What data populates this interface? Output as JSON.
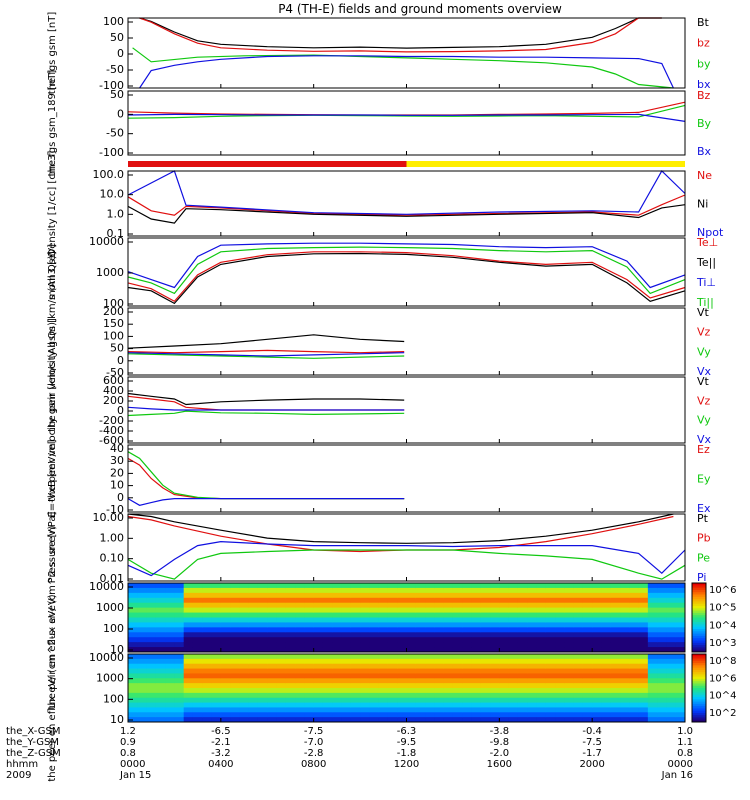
{
  "title": "P4 (TH-E) fields and ground moments overview",
  "colors": {
    "black": "#000000",
    "red": "#e01010",
    "green": "#10c810",
    "blue": "#1010e0",
    "yellow": "#ffee00"
  },
  "x_tick_labels_hhmm": [
    "0000",
    "0400",
    "0800",
    "1200",
    "1600",
    "2000",
    "0000"
  ],
  "x_date_labels": [
    "Jan 15",
    "",
    "",
    "",
    "",
    "",
    "Jan 16"
  ],
  "orbit_rows": [
    {
      "label": "the_X-GSM",
      "values": [
        "1.2",
        "-6.5",
        "-7.5",
        "-6.3",
        "-3.8",
        "-0.4",
        "1.0"
      ]
    },
    {
      "label": "the_Y-GSM",
      "values": [
        "0.9",
        "-2.1",
        "-7.0",
        "-9.5",
        "-9.8",
        "-7.5",
        "1.1"
      ]
    },
    {
      "label": "the_Z-GSM",
      "values": [
        "0.8",
        "-3.2",
        "-2.8",
        "-1.8",
        "-2.0",
        "-1.7",
        "0.8"
      ]
    },
    {
      "label": "hhmm",
      "values": [
        "0000",
        "0400",
        "0800",
        "1200",
        "1600",
        "2000",
        "0000"
      ]
    },
    {
      "label": "2009",
      "values": [
        "Jan 15",
        "",
        "",
        "",
        "",
        "",
        "Jan 16"
      ]
    }
  ],
  "chart_data": [
    {
      "type": "line",
      "ylabel": "the fgs gsm [nT]",
      "ylim": [
        -100,
        100
      ],
      "yticks": [
        "100",
        "50",
        "0",
        "-50",
        "-100"
      ],
      "series": [
        {
          "name": "Bt",
          "color": "#000000",
          "x": [
            0.5,
            1,
            2,
            3,
            4,
            6,
            8,
            10,
            12,
            14,
            16,
            18,
            20,
            21,
            22,
            23
          ],
          "values": [
            100,
            90,
            60,
            35,
            25,
            18,
            15,
            17,
            14,
            16,
            18,
            25,
            45,
            70,
            100,
            100
          ]
        },
        {
          "name": "bz",
          "color": "#e01010",
          "x": [
            0.5,
            1,
            2,
            3,
            4,
            6,
            8,
            10,
            12,
            14,
            16,
            18,
            20,
            21,
            22,
            23
          ],
          "values": [
            100,
            88,
            55,
            28,
            15,
            8,
            5,
            6,
            3,
            4,
            6,
            10,
            30,
            55,
            100,
            100
          ]
        },
        {
          "name": "by",
          "color": "#10c810",
          "x": [
            0.2,
            1,
            3,
            5,
            8,
            10,
            12,
            14,
            16,
            18,
            20,
            21,
            22,
            23.5
          ],
          "values": [
            15,
            -25,
            -12,
            -8,
            -6,
            -10,
            -14,
            -18,
            -22,
            -28,
            -40,
            -60,
            -90,
            -100
          ]
        },
        {
          "name": "bx",
          "color": "#1010e0",
          "x": [
            0.5,
            1,
            2,
            3,
            4,
            6,
            8,
            10,
            12,
            14,
            16,
            18,
            20,
            22,
            23,
            23.5
          ],
          "values": [
            -100,
            -50,
            -35,
            -25,
            -18,
            -10,
            -8,
            -8,
            -10,
            -10,
            -12,
            -12,
            -14,
            -16,
            -30,
            -100
          ]
        }
      ]
    },
    {
      "type": "line",
      "ylabel": "the fgs gsm_189 [nT]",
      "ylim": [
        -125,
        75
      ],
      "yticks": [
        "50",
        "0",
        "-50",
        "-100"
      ],
      "series": [
        {
          "name": "Bz",
          "color": "#e01010",
          "x": [
            0,
            2,
            4,
            6,
            8,
            10,
            12,
            14,
            16,
            18,
            20,
            22,
            24
          ],
          "values": [
            10,
            6,
            3,
            2,
            1,
            0,
            0,
            0,
            2,
            3,
            5,
            8,
            40
          ]
        },
        {
          "name": "By",
          "color": "#10c810",
          "x": [
            0,
            2,
            4,
            6,
            8,
            10,
            12,
            14,
            16,
            18,
            20,
            22,
            24
          ],
          "values": [
            -10,
            -8,
            -4,
            -2,
            -1,
            -2,
            -3,
            -4,
            -3,
            -2,
            -4,
            -6,
            30
          ]
        },
        {
          "name": "Bx",
          "color": "#1010e0",
          "x": [
            0,
            2,
            4,
            6,
            8,
            10,
            12,
            14,
            16,
            18,
            20,
            22,
            24
          ],
          "values": [
            0,
            2,
            1,
            0,
            0,
            0,
            -1,
            -1,
            0,
            0,
            1,
            2,
            -20
          ]
        }
      ]
    },
    {
      "type": "line",
      "ylabel": "Density [1/cc] [cm-3]",
      "yscale": "log",
      "ylim": [
        0.03,
        100
      ],
      "yticks": [
        "100.0",
        "10.0",
        "1.0",
        "0.1"
      ],
      "series": [
        {
          "name": "Ne",
          "color": "#e01010",
          "x": [
            0,
            1,
            2,
            2.5,
            4,
            8,
            12,
            16,
            20,
            22,
            23,
            24
          ],
          "values": [
            4,
            0.7,
            0.4,
            1.2,
            1.0,
            0.5,
            0.4,
            0.5,
            0.6,
            0.4,
            1.5,
            5
          ]
        },
        {
          "name": "Ni",
          "color": "#000000",
          "x": [
            0,
            1,
            2,
            2.5,
            4,
            8,
            12,
            16,
            20,
            22,
            23,
            24
          ],
          "values": [
            1.2,
            0.25,
            0.15,
            0.9,
            0.8,
            0.45,
            0.35,
            0.45,
            0.55,
            0.3,
            1.0,
            1.5
          ]
        },
        {
          "name": "Npot",
          "color": "#1010e0",
          "x": [
            0,
            2,
            2.5,
            4,
            8,
            12,
            16,
            20,
            22,
            23,
            24
          ],
          "values": [
            5,
            100,
            1.4,
            1.1,
            0.55,
            0.45,
            0.6,
            0.7,
            0.6,
            100,
            6
          ]
        }
      ]
    },
    {
      "type": "line",
      "ylabel": "mom3 [eV]",
      "yscale": "log",
      "ylim": [
        40,
        15000
      ],
      "yticks": [
        "10000",
        "1000",
        "100"
      ],
      "series": [
        {
          "name": "Te⊥",
          "color": "#e01010",
          "x": [
            0,
            1,
            2,
            3,
            4,
            6,
            8,
            10,
            12,
            14,
            16,
            18,
            20,
            21.5,
            22.5,
            24
          ],
          "values": [
            300,
            180,
            60,
            600,
            1800,
            3500,
            4500,
            4500,
            4200,
            3200,
            2000,
            1500,
            1800,
            400,
            80,
            200
          ]
        },
        {
          "name": "Te||",
          "color": "#000000",
          "x": [
            0,
            1,
            2,
            3,
            4,
            6,
            8,
            10,
            12,
            14,
            16,
            18,
            20,
            21.5,
            22.5,
            24
          ],
          "values": [
            200,
            150,
            50,
            500,
            1500,
            3000,
            3800,
            3900,
            3600,
            2800,
            1800,
            1300,
            1500,
            300,
            60,
            150
          ]
        },
        {
          "name": "Ti⊥",
          "color": "#1010e0",
          "x": [
            0,
            1,
            2,
            3,
            4,
            6,
            8,
            10,
            12,
            14,
            16,
            18,
            20,
            21.5,
            22.5,
            24
          ],
          "values": [
            800,
            400,
            200,
            3000,
            8000,
            9000,
            9500,
            9500,
            9000,
            8500,
            7000,
            6500,
            7000,
            2000,
            200,
            600
          ]
        },
        {
          "name": "Ti||",
          "color": "#10c810",
          "x": [
            0,
            1,
            2,
            3,
            4,
            6,
            8,
            10,
            12,
            14,
            16,
            18,
            20,
            21.5,
            22.5,
            24
          ],
          "values": [
            500,
            300,
            120,
            1500,
            4500,
            6000,
            6500,
            6800,
            6500,
            6000,
            5000,
            4500,
            5000,
            1200,
            120,
            400
          ]
        }
      ]
    },
    {
      "type": "line",
      "ylabel": "the peir velocity gsm [km/s (All Qs)]",
      "ylim": [
        -100,
        200
      ],
      "yticks": [
        "200",
        "150",
        "100",
        "50",
        "0",
        "-50"
      ],
      "series": [
        {
          "name": "Vt",
          "color": "#000000",
          "x": [
            0,
            2,
            4,
            6,
            8,
            10,
            11.9
          ],
          "values": [
            20,
            30,
            40,
            60,
            80,
            60,
            50
          ]
        },
        {
          "name": "Vz",
          "color": "#e01010",
          "x": [
            0,
            2,
            4,
            6,
            8,
            10,
            11.9
          ],
          "values": [
            5,
            0,
            5,
            10,
            5,
            0,
            5
          ]
        },
        {
          "name": "Vy",
          "color": "#10c810",
          "x": [
            0,
            2,
            4,
            6,
            8,
            10,
            11.9
          ],
          "values": [
            -5,
            -10,
            -15,
            -20,
            -25,
            -20,
            -15
          ]
        },
        {
          "name": "Vx",
          "color": "#1010e0",
          "x": [
            0,
            2,
            4,
            6,
            8,
            10,
            11.9
          ],
          "values": [
            0,
            -5,
            -10,
            -15,
            -10,
            -5,
            0
          ]
        }
      ]
    },
    {
      "type": "line",
      "ylabel": "the peer velocity gsm [km/s (All Qs)]",
      "ylim": [
        -600,
        600
      ],
      "yticks": [
        "600",
        "400",
        "200",
        "0",
        "-200",
        "-400",
        "-600"
      ],
      "series": [
        {
          "name": "Vt",
          "color": "#000000",
          "x": [
            0,
            1,
            2,
            2.5,
            4,
            6,
            8,
            10,
            11.9
          ],
          "values": [
            300,
            250,
            200,
            100,
            150,
            180,
            200,
            200,
            180
          ]
        },
        {
          "name": "Vz",
          "color": "#e01010",
          "x": [
            0,
            1,
            2,
            2.5,
            4,
            6,
            8,
            10,
            11.9
          ],
          "values": [
            250,
            200,
            150,
            50,
            0,
            0,
            0,
            0,
            0
          ]
        },
        {
          "name": "Vy",
          "color": "#10c810",
          "x": [
            0,
            1,
            2,
            2.5,
            4,
            6,
            8,
            10,
            11.9
          ],
          "values": [
            -100,
            -80,
            -60,
            -20,
            -50,
            -60,
            -80,
            -70,
            -60
          ]
        },
        {
          "name": "Vx",
          "color": "#1010e0",
          "x": [
            0,
            1,
            2,
            2.5,
            4,
            6,
            8,
            10,
            11.9
          ],
          "values": [
            50,
            20,
            0,
            0,
            0,
            0,
            0,
            0,
            0
          ]
        }
      ]
    },
    {
      "type": "line",
      "ylabel": "E=-VxB [mV/m]",
      "ylim": [
        -10,
        40
      ],
      "yticks": [
        "40",
        "30",
        "20",
        "10",
        "0",
        "-10"
      ],
      "series": [
        {
          "name": "Ez",
          "color": "#e01010",
          "x": [
            0,
            0.5,
            1,
            1.5,
            2,
            3,
            4,
            8,
            11.9
          ],
          "values": [
            30,
            25,
            15,
            8,
            3,
            0.5,
            0,
            0,
            0
          ]
        },
        {
          "name": "Ey",
          "color": "#10c810",
          "x": [
            0,
            0.5,
            1,
            1.5,
            2,
            3,
            4,
            8,
            11.9
          ],
          "values": [
            35,
            30,
            20,
            10,
            4,
            1,
            0,
            0,
            0
          ]
        },
        {
          "name": "Ex",
          "color": "#1010e0",
          "x": [
            0,
            0.5,
            1,
            1.5,
            2,
            3,
            4,
            8,
            11.9
          ],
          "values": [
            0,
            -5,
            -3,
            -1,
            0,
            0,
            0,
            0,
            0
          ]
        }
      ]
    },
    {
      "type": "line",
      "ylabel": "Pressure [nPa]",
      "yscale": "log",
      "ylim": [
        0.008,
        20
      ],
      "yticks": [
        "10.00",
        "1.00",
        "0.10",
        "0.01"
      ],
      "series": [
        {
          "name": "Pt",
          "color": "#000000",
          "x": [
            0,
            1,
            2,
            4,
            6,
            8,
            10,
            12,
            14,
            16,
            18,
            20,
            22,
            23.5
          ],
          "values": [
            20,
            15,
            8,
            3,
            1.2,
            0.8,
            0.7,
            0.65,
            0.7,
            0.9,
            1.5,
            3,
            8,
            20
          ]
        },
        {
          "name": "Pb",
          "color": "#e01010",
          "x": [
            0,
            1,
            2,
            4,
            6,
            8,
            10,
            12,
            14,
            16,
            18,
            20,
            22,
            23.5
          ],
          "values": [
            15,
            10,
            5,
            1.5,
            0.6,
            0.3,
            0.25,
            0.3,
            0.3,
            0.4,
            0.8,
            2,
            6,
            15
          ]
        },
        {
          "name": "Pe",
          "color": "#10c810",
          "x": [
            0,
            1,
            2,
            3,
            4,
            6,
            8,
            10,
            12,
            14,
            16,
            18,
            20,
            22,
            23,
            24
          ],
          "values": [
            0.1,
            0.02,
            0.01,
            0.1,
            0.2,
            0.25,
            0.3,
            0.3,
            0.3,
            0.3,
            0.2,
            0.15,
            0.1,
            0.02,
            0.01,
            0.05
          ]
        },
        {
          "name": "Pi",
          "color": "#1010e0",
          "x": [
            0,
            1,
            2,
            3,
            4,
            6,
            8,
            10,
            12,
            14,
            16,
            18,
            20,
            22,
            23,
            24
          ],
          "values": [
            0.05,
            0.015,
            0.1,
            0.5,
            0.8,
            0.6,
            0.5,
            0.5,
            0.5,
            0.45,
            0.5,
            0.5,
            0.5,
            0.2,
            0.02,
            0.3
          ]
        }
      ]
    },
    {
      "type": "heatmap",
      "ylabel": "the peir en eflux eV/ (cm^2-s- sr-eV)",
      "yscale": "log",
      "ylim": [
        8,
        20000
      ],
      "yticks": [
        "10000",
        "1000",
        "100",
        "10"
      ],
      "colorbar_ticks": [
        "10^6",
        "10^5",
        "10^4",
        "10^3"
      ]
    },
    {
      "type": "heatmap",
      "ylabel": "the peer en eflux eV/ (cm^2-s- sr-eV)",
      "yscale": "log",
      "ylim": [
        8,
        20000
      ],
      "yticks": [
        "10000",
        "1000",
        "100",
        "10"
      ],
      "colorbar_ticks": [
        "10^8",
        "10^6",
        "10^4",
        "10^2"
      ]
    }
  ],
  "mode_bar": {
    "red_from_hr": 0,
    "red_to_hr": 12,
    "yellow_from_hr": 12,
    "yellow_to_hr": 24
  }
}
